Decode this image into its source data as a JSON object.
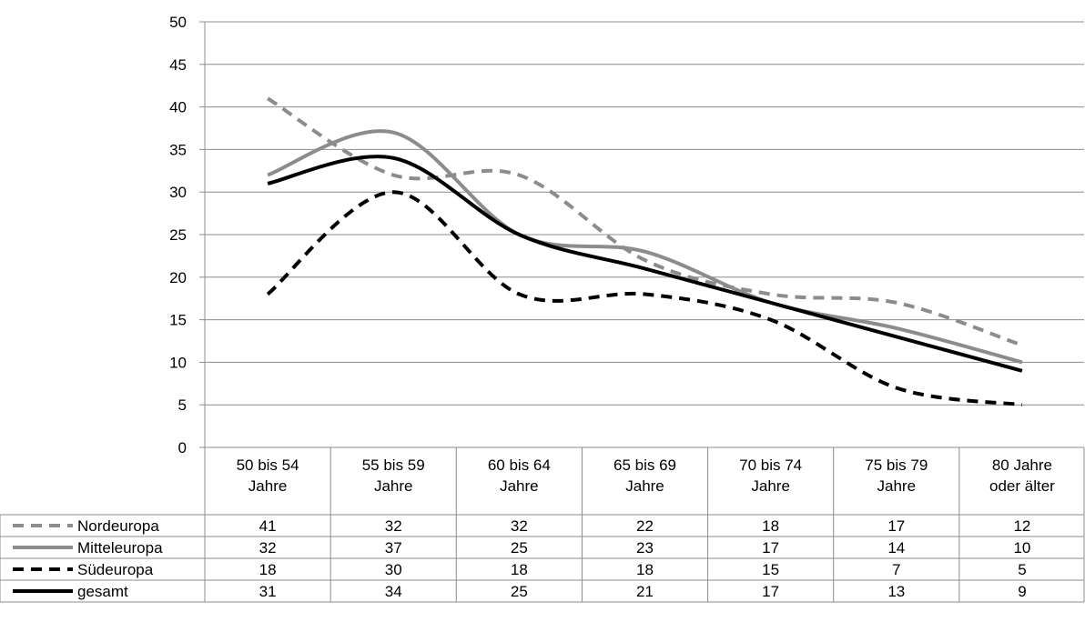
{
  "chart_data": {
    "type": "line",
    "title": "",
    "xlabel": "",
    "ylabel": "",
    "ylim": [
      0,
      50
    ],
    "yticks": [
      0,
      5,
      10,
      15,
      20,
      25,
      30,
      35,
      40,
      45,
      50
    ],
    "grid": true,
    "legend": "data-table",
    "categories": [
      [
        "50 bis 54",
        "Jahre"
      ],
      [
        "55 bis 59",
        "Jahre"
      ],
      [
        "60 bis 64",
        "Jahre"
      ],
      [
        "65 bis 69",
        "Jahre"
      ],
      [
        "70 bis 74",
        "Jahre"
      ],
      [
        "75 bis 79",
        "Jahre"
      ],
      [
        "80 Jahre",
        "oder älter"
      ]
    ],
    "series": [
      {
        "name": "Nordeuropa",
        "color": "#8c8c8c",
        "style": "dashed",
        "values": [
          41,
          32,
          32,
          22,
          18,
          17,
          12
        ]
      },
      {
        "name": "Mitteleuropa",
        "color": "#8c8c8c",
        "style": "solid",
        "values": [
          32,
          37,
          25,
          23,
          17,
          14,
          10
        ]
      },
      {
        "name": "Südeuropa",
        "color": "#000000",
        "style": "dashed",
        "values": [
          18,
          30,
          18,
          18,
          15,
          7,
          5
        ]
      },
      {
        "name": "gesamt",
        "color": "#000000",
        "style": "solid",
        "values": [
          31,
          34,
          25,
          21,
          17,
          13,
          9
        ]
      }
    ]
  }
}
